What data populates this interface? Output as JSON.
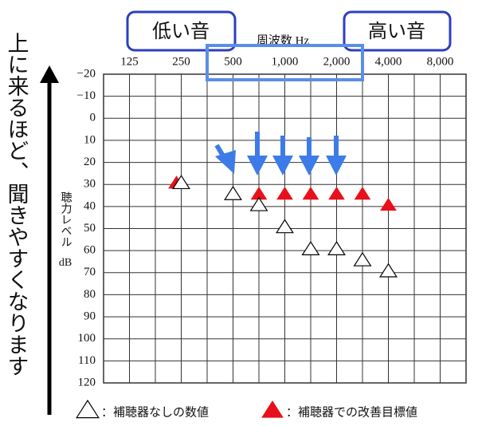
{
  "chart_data": {
    "type": "scatter",
    "x_label": "周波数 Hz",
    "y_label": "聴力レベル",
    "y_unit": "dB",
    "annotations": [
      "低い音",
      "高い音",
      "上に来るほど、聞きやすくなります"
    ],
    "categories": [
      "125",
      null,
      "250",
      null,
      "500",
      null,
      "1,000",
      null,
      "2,000",
      null,
      "4,000",
      null,
      "8,000"
    ],
    "ylim": [
      -20,
      120
    ],
    "yticks": [
      {
        "value": -20,
        "label": "−20"
      },
      {
        "value": -10,
        "label": "−10"
      },
      0,
      10,
      20,
      30,
      40,
      50,
      60,
      70,
      80,
      90,
      100,
      110,
      120
    ],
    "y_inverted": true,
    "grid": true,
    "legend": "bottom",
    "series": [
      {
        "name": "：補聴器なしの数値",
        "color": "#000000",
        "marker": "triangle-open",
        "values": [
          null,
          null,
          30,
          null,
          35,
          40,
          50,
          60,
          60,
          65,
          70,
          null,
          null
        ]
      },
      {
        "name": "：補聴器での改善目標値",
        "color": "#e8101a",
        "marker": "triangle-filled",
        "values": [
          null,
          null,
          30,
          null,
          35,
          35,
          35,
          35,
          35,
          35,
          40,
          null,
          null
        ]
      }
    ]
  }
}
